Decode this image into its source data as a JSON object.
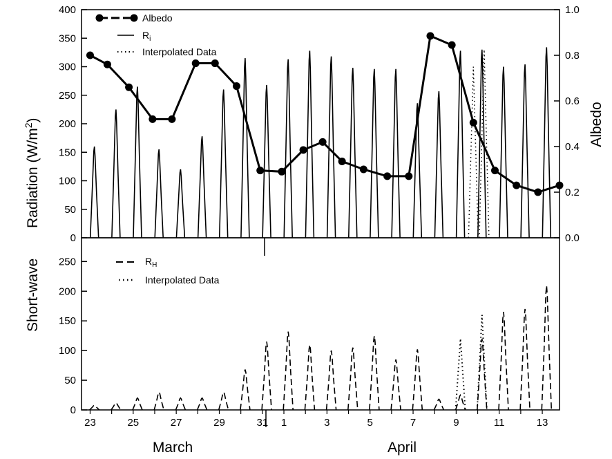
{
  "chart_data": [
    {
      "type": "line",
      "panel": "top",
      "ylabel_left_part1": "Short-wave",
      "ylabel_left_part2": "Radiation (W/m",
      "ylabel_left_sup": "2",
      "ylabel_left_close": ")",
      "ylabel_right": "Albedo",
      "ylim": [
        0,
        400
      ],
      "yticks": [
        0,
        50,
        100,
        150,
        200,
        250,
        300,
        350,
        400
      ],
      "y2lim": [
        0.0,
        1.0
      ],
      "y2ticks": [
        "0.0",
        "0.2",
        "0.4",
        "0.6",
        "0.8",
        "1.0"
      ],
      "legend": {
        "albedo": "Albedo",
        "ri_main": "R",
        "ri_sub": "i",
        "interp": "Interpolated Data"
      },
      "albedo": {
        "x": [
          23,
          23.8,
          24.8,
          25.9,
          26.8,
          27.9,
          28.8,
          29.8,
          30.9,
          31.9,
          32.9,
          33.8,
          34.7,
          35.7,
          36.8,
          37.8,
          38.8,
          39.8,
          40.8,
          41.8,
          42.8,
          43.8,
          44.8
        ],
        "values": [
          0.8,
          0.76,
          0.66,
          0.52,
          0.52,
          0.765,
          0.765,
          0.665,
          0.295,
          0.29,
          0.385,
          0.42,
          0.335,
          0.3,
          0.27,
          0.27,
          0.885,
          0.845,
          0.505,
          0.295,
          0.23,
          0.2,
          0.23
        ]
      },
      "ri_daily_peaks": {
        "x": [
          23.2,
          24.2,
          25.2,
          26.2,
          27.2,
          28.2,
          29.2,
          30.2,
          31.2,
          32.2,
          33.2,
          34.2,
          35.2,
          36.2,
          37.2,
          38.2,
          39.2,
          40.2,
          41.2,
          42.2,
          43.2,
          44.2
        ],
        "values": [
          160,
          225,
          265,
          155,
          120,
          178,
          260,
          315,
          268,
          313,
          328,
          318,
          298,
          296,
          296,
          236,
          257,
          328,
          330,
          300,
          304,
          334
        ]
      },
      "ri_interpolated_peaks": {
        "x": [
          40.8,
          41.3
        ],
        "values": [
          300,
          330
        ]
      }
    },
    {
      "type": "line",
      "panel": "bottom",
      "ylim": [
        0,
        290
      ],
      "yticks": [
        0,
        50,
        100,
        150,
        200,
        250
      ],
      "xlim": [
        22.6,
        44.8
      ],
      "xtick_labels": [
        "23",
        "25",
        "27",
        "29",
        "31",
        "1",
        "3",
        "5",
        "7",
        "9",
        "11",
        "13"
      ],
      "xtick_days": [
        23,
        25,
        27,
        29,
        31,
        32,
        34,
        36,
        38,
        40,
        42,
        44
      ],
      "month_labels": [
        "March",
        "April"
      ],
      "legend": {
        "rh_main": "R",
        "rh_sub": "H",
        "interp": "Interpolated Data"
      },
      "rh_daily_peaks": {
        "x": [
          23.2,
          24.2,
          25.2,
          26.2,
          27.2,
          28.2,
          29.2,
          30.2,
          31.2,
          32.2,
          33.2,
          34.2,
          35.2,
          36.2,
          37.2,
          38.2,
          39.2,
          40.2,
          41.2,
          42.2,
          43.2,
          44.2
        ],
        "values": [
          8,
          12,
          20,
          30,
          20,
          20,
          30,
          68,
          115,
          132,
          110,
          100,
          105,
          125,
          85,
          102,
          18,
          25,
          120,
          165,
          170,
          210
        ]
      },
      "rh_interpolated_peaks": {
        "x": [
          40.2,
          41.2
        ],
        "values": [
          120,
          160
        ]
      }
    }
  ]
}
